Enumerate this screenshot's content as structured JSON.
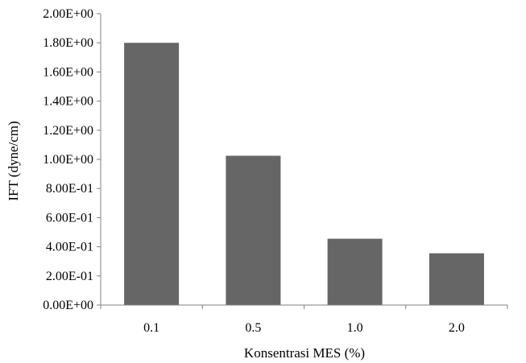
{
  "chart_data": {
    "type": "bar",
    "categories": [
      "0.1",
      "0.5",
      "1.0",
      "2.0"
    ],
    "values": [
      1.8,
      1.025,
      0.455,
      0.355
    ],
    "title": "",
    "xlabel": "Konsentrasi MES (%)",
    "ylabel": "IFT (dyne/cm)",
    "ylim": [
      0,
      2.0
    ],
    "y_ticks": [
      "0.00E+00",
      "2.00E-01",
      "4.00E-01",
      "6.00E-01",
      "8.00E-01",
      "1.00E+00",
      "1.20E+00",
      "1.40E+00",
      "1.60E+00",
      "1.80E+00",
      "2.00E+00"
    ],
    "grid": false,
    "legend": "none",
    "bar_color": "#666666",
    "axis_color": "#808080"
  }
}
